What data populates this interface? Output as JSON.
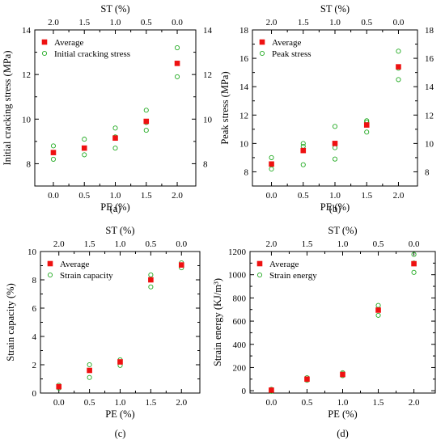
{
  "colors": {
    "average": "#ee1111",
    "sample": "#22aa22",
    "axis": "#000000"
  },
  "chart_data": [
    {
      "type": "scatter",
      "panel_label": "(a)",
      "xlabel": "PE (%)",
      "ylabel": "Initial cracking stress (MPa)",
      "top_xlabel": "ST (%)",
      "xlim": [
        -0.3,
        2.3
      ],
      "ylim": [
        7,
        14
      ],
      "xticks": [
        0.0,
        0.5,
        1.0,
        1.5,
        2.0
      ],
      "xtick_labels": [
        "0.0",
        "0.5",
        "1.0",
        "1.5",
        "2.0"
      ],
      "top_xtick_labels": [
        "2.0",
        "1.5",
        "1.0",
        "0.5",
        "0.0"
      ],
      "yticks": [
        8,
        10,
        12,
        14
      ],
      "ytick_labels": [
        "8",
        "10",
        "12",
        "14"
      ],
      "right_ytick_labels": [
        "8",
        "10",
        "12",
        "14"
      ],
      "legend_position": "upper-left",
      "series": [
        {
          "name": "Average",
          "marker": "square",
          "x": [
            0,
            0.5,
            1.0,
            1.5,
            2.0
          ],
          "y": [
            8.5,
            8.7,
            9.15,
            9.9,
            12.5
          ]
        },
        {
          "name": "Initial cracking stress",
          "marker": "circle",
          "x": [
            0,
            0,
            0,
            0.5,
            0.5,
            0.5,
            1.0,
            1.0,
            1.0,
            1.5,
            1.5,
            1.5,
            2.0,
            2.0,
            2.0
          ],
          "y": [
            8.2,
            8.5,
            8.8,
            8.4,
            8.7,
            9.1,
            8.7,
            9.2,
            9.6,
            9.5,
            9.85,
            10.4,
            11.9,
            12.5,
            13.2
          ]
        }
      ]
    },
    {
      "type": "scatter",
      "panel_label": "(b)",
      "xlabel": "PE (%)",
      "ylabel": "Peak stress (MPa)",
      "top_xlabel": "ST (%)",
      "xlim": [
        -0.3,
        2.3
      ],
      "ylim": [
        7,
        18
      ],
      "xticks": [
        0.0,
        0.5,
        1.0,
        1.5,
        2.0
      ],
      "xtick_labels": [
        "0.0",
        "0.5",
        "1.0",
        "1.5",
        "2.0"
      ],
      "top_xtick_labels": [
        "2.0",
        "1.5",
        "1.0",
        "0.5",
        "0.0"
      ],
      "yticks": [
        8,
        10,
        12,
        14,
        16,
        18
      ],
      "ytick_labels": [
        "8",
        "10",
        "12",
        "14",
        "16",
        "18"
      ],
      "right_ytick_labels": [
        "8",
        "10",
        "12",
        "14",
        "16",
        "18"
      ],
      "legend_position": "upper-left",
      "series": [
        {
          "name": "Average",
          "marker": "square",
          "x": [
            0,
            0.5,
            1.0,
            1.5,
            2.0
          ],
          "y": [
            8.55,
            9.5,
            10.0,
            11.3,
            15.4
          ]
        },
        {
          "name": "Peak stress",
          "marker": "circle",
          "x": [
            0,
            0,
            0,
            0.5,
            0.5,
            0.5,
            1.0,
            1.0,
            1.0,
            1.5,
            1.5,
            1.5,
            2.0,
            2.0,
            2.0
          ],
          "y": [
            8.2,
            8.5,
            9.0,
            8.5,
            9.8,
            10.0,
            8.9,
            9.7,
            11.2,
            10.8,
            11.5,
            11.6,
            14.5,
            15.3,
            16.5
          ]
        }
      ]
    },
    {
      "type": "scatter",
      "panel_label": "(c)",
      "xlabel": "PE (%)",
      "ylabel": "Strain capacity (%)",
      "top_xlabel": "ST (%)",
      "xlim": [
        -0.3,
        2.3
      ],
      "ylim": [
        0,
        10
      ],
      "xticks": [
        0.0,
        0.5,
        1.0,
        1.5,
        2.0
      ],
      "xtick_labels": [
        "0.0",
        "0.5",
        "1.0",
        "1.5",
        "2.0"
      ],
      "top_xtick_labels": [
        "2.0",
        "1.5",
        "1.0",
        "0.5",
        "0.0"
      ],
      "yticks": [
        0,
        2,
        4,
        6,
        8,
        10
      ],
      "ytick_labels": [
        "0",
        "2",
        "4",
        "6",
        "8",
        "10"
      ],
      "right_ytick_labels": [],
      "legend_position": "upper-left",
      "series": [
        {
          "name": "Average",
          "marker": "square",
          "x": [
            0,
            0.5,
            1.0,
            1.5,
            2.0
          ],
          "y": [
            0.45,
            1.6,
            2.2,
            8.0,
            9.05
          ]
        },
        {
          "name": "Strain capacity",
          "marker": "circle",
          "x": [
            0,
            0,
            0,
            0.5,
            0.5,
            0.5,
            1.0,
            1.0,
            1.0,
            1.5,
            1.5,
            1.5,
            2.0,
            2.0,
            2.0
          ],
          "y": [
            0.35,
            0.45,
            0.55,
            1.1,
            1.6,
            2.0,
            1.95,
            2.2,
            2.35,
            7.5,
            8.0,
            8.35,
            8.85,
            9.05,
            9.2
          ]
        }
      ]
    },
    {
      "type": "scatter",
      "panel_label": "(d)",
      "xlabel": "PE (%)",
      "ylabel": "Strain energy (KJ/m³)",
      "top_xlabel": "ST (%)",
      "xlim": [
        -0.3,
        2.3
      ],
      "ylim": [
        -20,
        1200
      ],
      "xticks": [
        0.0,
        0.5,
        1.0,
        1.5,
        2.0
      ],
      "xtick_labels": [
        "0.0",
        "0.5",
        "1.0",
        "1.5",
        "2.0"
      ],
      "top_xtick_labels": [
        "2.0",
        "1.5",
        "1.0",
        "0.5",
        "0.0"
      ],
      "yticks": [
        0,
        200,
        400,
        600,
        800,
        1000,
        1200
      ],
      "ytick_labels": [
        "0",
        "200",
        "400",
        "600",
        "800",
        "1000",
        "1200"
      ],
      "right_ytick_labels": [],
      "legend_position": "upper-left",
      "series": [
        {
          "name": "Average",
          "marker": "square",
          "x": [
            0,
            0.5,
            1.0,
            1.5,
            2.0
          ],
          "y": [
            5,
            100,
            140,
            695,
            1095
          ]
        },
        {
          "name": "Strain energy",
          "marker": "circle",
          "x": [
            0,
            0,
            0,
            0.5,
            0.5,
            0.5,
            1.0,
            1.0,
            1.0,
            1.5,
            1.5,
            1.5,
            2.0,
            2.0,
            2.0
          ],
          "y": [
            -5,
            5,
            12,
            90,
            100,
            112,
            130,
            145,
            155,
            650,
            700,
            735,
            1020,
            1100,
            1175
          ]
        }
      ]
    }
  ]
}
